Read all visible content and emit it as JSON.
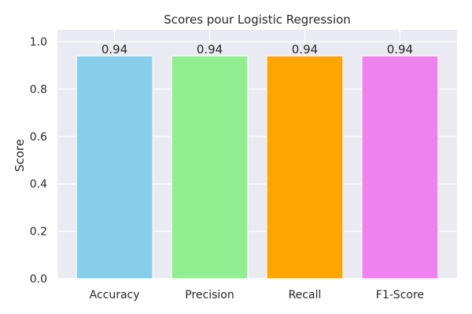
{
  "chart_data": {
    "type": "bar",
    "title": "Scores pour Logistic Regression",
    "xlabel": "",
    "ylabel": "Score",
    "categories": [
      "Accuracy",
      "Precision",
      "Recall",
      "F1-Score"
    ],
    "values": [
      0.94,
      0.94,
      0.94,
      0.94
    ],
    "value_labels": [
      "0.94",
      "0.94",
      "0.94",
      "0.94"
    ],
    "colors": [
      "#87ceeb",
      "#90ee90",
      "#ffa500",
      "#ee82ee"
    ],
    "ylim": [
      0,
      1.05
    ],
    "yticks": [
      0.0,
      0.2,
      0.4,
      0.6,
      0.8,
      1.0
    ],
    "ytick_labels": [
      "0.0",
      "0.2",
      "0.4",
      "0.6",
      "0.8",
      "1.0"
    ],
    "grid": true,
    "background": "#eaeaf2",
    "grid_color": "#ffffff"
  }
}
